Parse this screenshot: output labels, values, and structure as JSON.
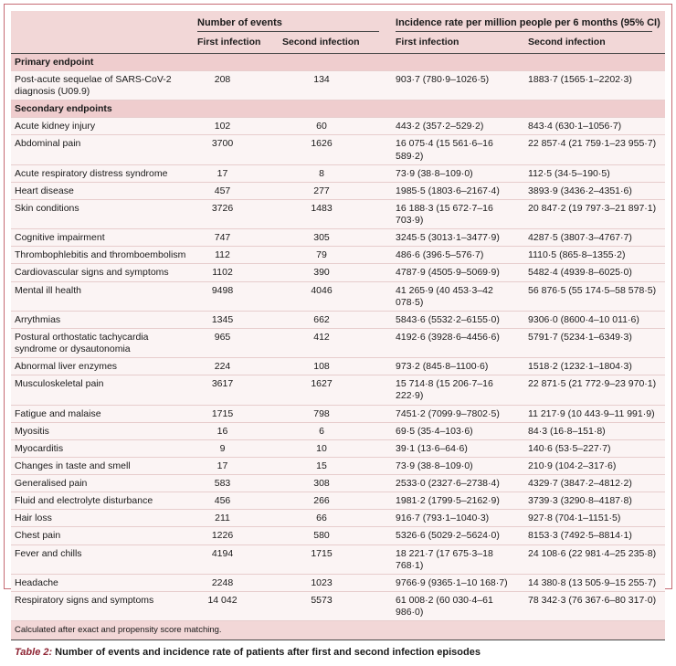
{
  "colors": {
    "frame-border": "#c66b74",
    "band": "#f2d7d7",
    "section": "#efcdce",
    "row-bg": "#fbf4f4",
    "row-line": "#e7cdcd",
    "rule": "#474747",
    "caption-accent": "#8e2433",
    "text": "#1a1a1a"
  },
  "table": {
    "col_groups": [
      {
        "label": "Number of events"
      },
      {
        "label": "Incidence rate per million people per 6 months (95% CI)"
      }
    ],
    "sub_headers": [
      "First infection",
      "Second infection",
      "First infection",
      "Second infection"
    ],
    "sections": [
      {
        "title": "Primary endpoint",
        "rows": [
          {
            "name": "Post-acute sequelae of SARS-CoV-2 diagnosis (U09.9)",
            "events_first": "208",
            "events_second": "134",
            "rate_first": "903·7 (780·9–1026·5)",
            "rate_second": "1883·7 (1565·1–2202·3)"
          }
        ]
      },
      {
        "title": "Secondary endpoints",
        "rows": [
          {
            "name": "Acute kidney injury",
            "events_first": "102",
            "events_second": "60",
            "rate_first": "443·2 (357·2–529·2)",
            "rate_second": "843·4 (630·1–1056·7)"
          },
          {
            "name": "Abdominal pain",
            "events_first": "3700",
            "events_second": "1626",
            "rate_first": "16 075·4 (15 561·6–16 589·2)",
            "rate_second": "22 857·4 (21 759·1–23 955·7)"
          },
          {
            "name": "Acute respiratory distress syndrome",
            "events_first": "17",
            "events_second": "8",
            "rate_first": "73·9 (38·8–109·0)",
            "rate_second": "112·5 (34·5–190·5)"
          },
          {
            "name": "Heart disease",
            "events_first": "457",
            "events_second": "277",
            "rate_first": "1985·5 (1803·6–2167·4)",
            "rate_second": "3893·9 (3436·2–4351·6)"
          },
          {
            "name": "Skin conditions",
            "events_first": "3726",
            "events_second": "1483",
            "rate_first": "16 188·3 (15 672·7–16 703·9)",
            "rate_second": "20 847·2 (19 797·3–21 897·1)"
          },
          {
            "name": "Cognitive impairment",
            "events_first": "747",
            "events_second": "305",
            "rate_first": "3245·5 (3013·1–3477·9)",
            "rate_second": "4287·5 (3807·3–4767·7)"
          },
          {
            "name": "Thrombophlebitis and thromboembolism",
            "events_first": "112",
            "events_second": "79",
            "rate_first": "486·6 (396·5–576·7)",
            "rate_second": "1110·5 (865·8–1355·2)"
          },
          {
            "name": "Cardiovascular signs and symptoms",
            "events_first": "1102",
            "events_second": "390",
            "rate_first": "4787·9 (4505·9–5069·9)",
            "rate_second": "5482·4 (4939·8–6025·0)"
          },
          {
            "name": "Mental ill health",
            "events_first": "9498",
            "events_second": "4046",
            "rate_first": "41 265·9 (40 453·3–42 078·5)",
            "rate_second": "56 876·5 (55 174·5–58 578·5)"
          },
          {
            "name": "Arrythmias",
            "events_first": "1345",
            "events_second": "662",
            "rate_first": "5843·6 (5532·2–6155·0)",
            "rate_second": "9306·0 (8600·4–10 011·6)"
          },
          {
            "name": "Postural orthostatic tachycardia syndrome or dysautonomia",
            "events_first": "965",
            "events_second": "412",
            "rate_first": "4192·6 (3928·6–4456·6)",
            "rate_second": "5791·7 (5234·1–6349·3)"
          },
          {
            "name": "Abnormal liver enzymes",
            "events_first": "224",
            "events_second": "108",
            "rate_first": "973·2 (845·8–1100·6)",
            "rate_second": "1518·2 (1232·1–1804·3)"
          },
          {
            "name": "Musculoskeletal pain",
            "events_first": "3617",
            "events_second": "1627",
            "rate_first": "15 714·8 (15 206·7–16 222·9)",
            "rate_second": "22 871·5 (21 772·9–23 970·1)"
          },
          {
            "name": "Fatigue and malaise",
            "events_first": "1715",
            "events_second": "798",
            "rate_first": "7451·2 (7099·9–7802·5)",
            "rate_second": "11 217·9 (10 443·9–11 991·9)"
          },
          {
            "name": "Myositis",
            "events_first": "16",
            "events_second": "6",
            "rate_first": "69·5 (35·4–103·6)",
            "rate_second": "84·3 (16·8–151·8)"
          },
          {
            "name": "Myocarditis",
            "events_first": "9",
            "events_second": "10",
            "rate_first": "39·1 (13·6–64·6)",
            "rate_second": "140·6 (53·5–227·7)"
          },
          {
            "name": "Changes in taste and smell",
            "events_first": "17",
            "events_second": "15",
            "rate_first": "73·9 (38·8–109·0)",
            "rate_second": "210·9 (104·2–317·6)"
          },
          {
            "name": "Generalised pain",
            "events_first": "583",
            "events_second": "308",
            "rate_first": "2533·0 (2327·6–2738·4)",
            "rate_second": "4329·7 (3847·2–4812·2)"
          },
          {
            "name": "Fluid and electrolyte disturbance",
            "events_first": "456",
            "events_second": "266",
            "rate_first": "1981·2 (1799·5–2162·9)",
            "rate_second": "3739·3 (3290·8–4187·8)"
          },
          {
            "name": "Hair loss",
            "events_first": "211",
            "events_second": "66",
            "rate_first": "916·7 (793·1–1040·3)",
            "rate_second": "927·8 (704·1–1151·5)"
          },
          {
            "name": "Chest pain",
            "events_first": "1226",
            "events_second": "580",
            "rate_first": "5326·6 (5029·2–5624·0)",
            "rate_second": "8153·3 (7492·5–8814·1)"
          },
          {
            "name": "Fever and chills",
            "events_first": "4194",
            "events_second": "1715",
            "rate_first": "18 221·7 (17 675·3–18 768·1)",
            "rate_second": "24 108·6 (22 981·4–25 235·8)"
          },
          {
            "name": "Headache",
            "events_first": "2248",
            "events_second": "1023",
            "rate_first": "9766·9 (9365·1–10 168·7)",
            "rate_second": "14 380·8 (13 505·9–15 255·7)"
          },
          {
            "name": "Respiratory signs and symptoms",
            "events_first": "14 042",
            "events_second": "5573",
            "rate_first": "61 008·2 (60 030·4–61 986·0)",
            "rate_second": "78 342·3 (76 367·6–80 317·0)"
          }
        ]
      }
    ],
    "footnote": "Calculated after exact and propensity score matching.",
    "caption_label": "Table 2:",
    "caption_text": "Number of events and incidence rate of patients after first and second infection episodes"
  }
}
